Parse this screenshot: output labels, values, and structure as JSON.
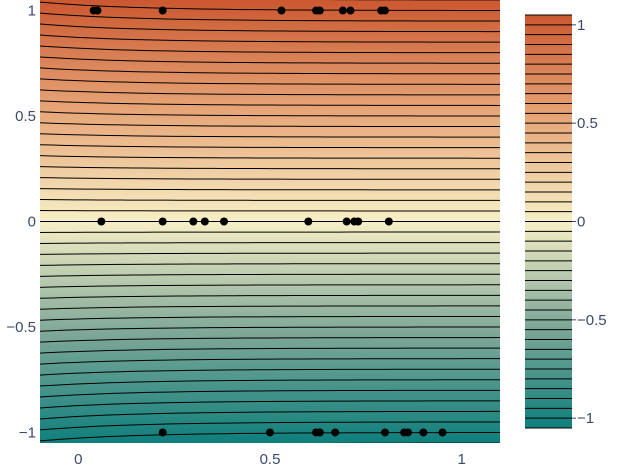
{
  "chart_data": {
    "type": "contour",
    "x_range": [
      -0.1,
      1.1
    ],
    "y_range": [
      -1.05,
      1.05
    ],
    "x_ticks": [
      {
        "value": 0,
        "label": "0"
      },
      {
        "value": 0.5,
        "label": "0.5"
      },
      {
        "value": 1,
        "label": "1"
      }
    ],
    "y_ticks": [
      {
        "value": 1,
        "label": "1"
      },
      {
        "value": 0.5,
        "label": "0.5"
      },
      {
        "value": 0,
        "label": "0"
      },
      {
        "value": -0.5,
        "label": "−0.5"
      },
      {
        "value": -1,
        "label": "−1"
      }
    ],
    "colorbar": {
      "range": [
        -1.05,
        1.05
      ],
      "ticks": [
        {
          "value": 1,
          "label": "1"
        },
        {
          "value": 0.5,
          "label": "0.5"
        },
        {
          "value": 0,
          "label": "0"
        },
        {
          "value": -0.5,
          "label": "−0.5"
        },
        {
          "value": -1,
          "label": "−1"
        }
      ]
    },
    "contour_levels": {
      "start": -1.05,
      "end": 1.05,
      "step": 0.05
    },
    "colorscale": [
      [
        0.0,
        "#0f7f7c"
      ],
      [
        0.25,
        "#7fa898"
      ],
      [
        0.5,
        "#f7efc6"
      ],
      [
        0.75,
        "#e7a678"
      ],
      [
        1.0,
        "#cb5831"
      ]
    ],
    "line_color": "#000000",
    "marker_color": "#000000",
    "scatter_points": [
      {
        "x": 0.04,
        "y": 1
      },
      {
        "x": 0.05,
        "y": 1
      },
      {
        "x": 0.22,
        "y": 1
      },
      {
        "x": 0.53,
        "y": 1
      },
      {
        "x": 0.62,
        "y": 1
      },
      {
        "x": 0.63,
        "y": 1
      },
      {
        "x": 0.69,
        "y": 1
      },
      {
        "x": 0.71,
        "y": 1
      },
      {
        "x": 0.79,
        "y": 1
      },
      {
        "x": 0.8,
        "y": 1
      },
      {
        "x": 0.06,
        "y": 0
      },
      {
        "x": 0.22,
        "y": 0
      },
      {
        "x": 0.3,
        "y": 0
      },
      {
        "x": 0.33,
        "y": 0
      },
      {
        "x": 0.38,
        "y": 0
      },
      {
        "x": 0.6,
        "y": 0
      },
      {
        "x": 0.7,
        "y": 0
      },
      {
        "x": 0.72,
        "y": 0
      },
      {
        "x": 0.73,
        "y": 0
      },
      {
        "x": 0.81,
        "y": 0
      },
      {
        "x": 0.22,
        "y": -1
      },
      {
        "x": 0.5,
        "y": -1
      },
      {
        "x": 0.62,
        "y": -1
      },
      {
        "x": 0.63,
        "y": -1
      },
      {
        "x": 0.67,
        "y": -1
      },
      {
        "x": 0.8,
        "y": -1
      },
      {
        "x": 0.85,
        "y": -1
      },
      {
        "x": 0.86,
        "y": -1
      },
      {
        "x": 0.9,
        "y": -1
      },
      {
        "x": 0.95,
        "y": -1
      }
    ]
  }
}
